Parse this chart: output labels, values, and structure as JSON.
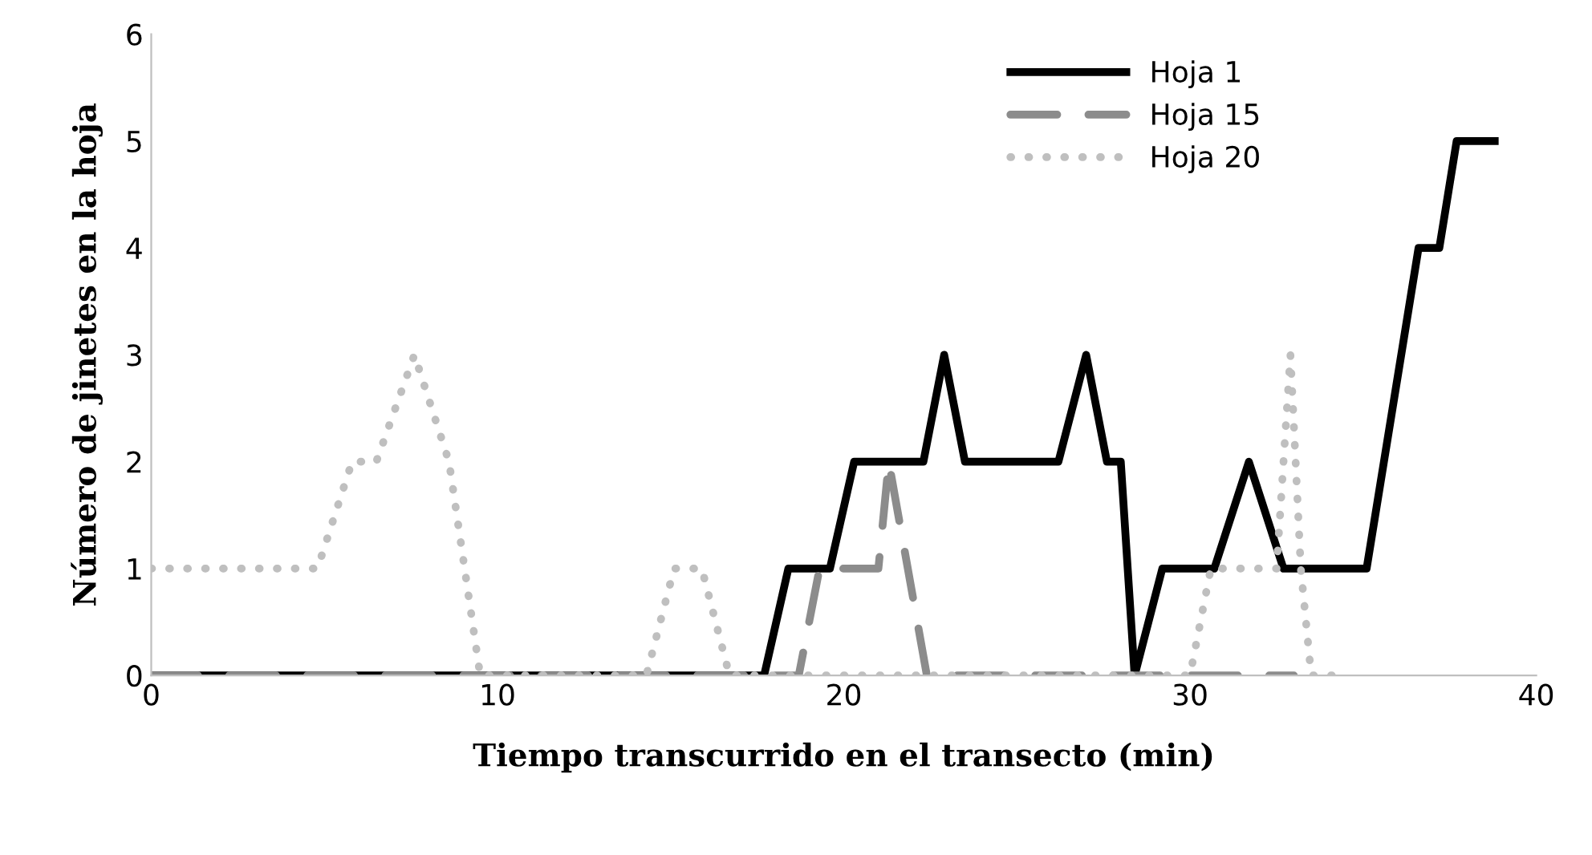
{
  "chart_data": {
    "type": "line",
    "xlabel": "Tiempo transcurrido en el transecto (min)",
    "ylabel": "Número de jinetes en la hoja",
    "xlim": [
      0,
      40
    ],
    "ylim": [
      0,
      6
    ],
    "xticks": [
      0,
      10,
      20,
      30,
      40
    ],
    "yticks": [
      0,
      1,
      2,
      3,
      4,
      5,
      6
    ],
    "grid": false,
    "legend": "top right",
    "series": [
      {
        "name": "Hoja 1",
        "color": "#000000",
        "line_style": "solid",
        "x": [
          0,
          17.7,
          18.4,
          19.6,
          20.3,
          22.3,
          22.9,
          23.5,
          26.2,
          27.0,
          27.6,
          28.0,
          28.4,
          29.2,
          30.7,
          31.7,
          32.7,
          35.1,
          36.6,
          37.2,
          37.7,
          38.8
        ],
        "values": [
          0,
          0,
          1,
          1,
          2,
          2,
          3,
          2,
          2,
          3,
          2,
          2,
          0,
          1,
          1,
          2,
          1,
          1,
          4,
          4,
          5,
          5
        ]
      },
      {
        "name": "Hoja 15",
        "color": "#8c8c8c",
        "line_style": "dashed",
        "x": [
          0,
          18.7,
          19.3,
          20.5,
          21.0,
          21.3,
          22.4,
          33.0
        ],
        "values": [
          0,
          0,
          1,
          1,
          1,
          2,
          0,
          0
        ]
      },
      {
        "name": "Hoja 20",
        "color": "#bfbfbf",
        "line_style": "dotted",
        "x": [
          0,
          4.8,
          5.8,
          6.5,
          7.6,
          8.6,
          9.5,
          14.3,
          15.1,
          15.9,
          16.7,
          30.0,
          30.6,
          32.5,
          32.9,
          33.2,
          33.5,
          34.5
        ],
        "values": [
          1,
          1,
          2,
          2,
          3,
          2,
          0,
          0,
          1,
          1,
          0,
          0,
          1,
          1,
          3,
          1,
          0,
          0
        ]
      }
    ]
  }
}
